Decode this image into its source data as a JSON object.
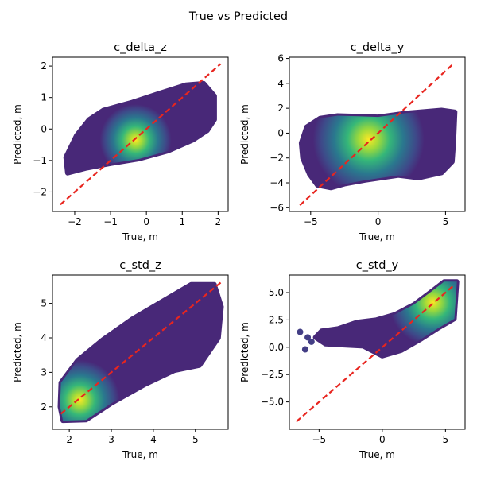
{
  "figure": {
    "suptitle": "True vs Predicted"
  },
  "colors": {
    "diagonal": "#e8251f",
    "scatter_low": "#482878",
    "scatter_mid": "#2a788e",
    "scatter_high": "#fde725"
  },
  "chart_data": [
    {
      "type": "scatter",
      "title": "c_delta_z",
      "xlabel": "True, m",
      "ylabel": "Predicted, m",
      "xlim": [
        -2.62,
        2.28
      ],
      "ylim": [
        -2.62,
        2.28
      ],
      "xticks": [
        -2,
        -1,
        0,
        1,
        2
      ],
      "yticks": [
        -2,
        -1,
        0,
        1,
        2
      ],
      "xtick_labels": [
        "−2",
        "−1",
        "0",
        "1",
        "2"
      ],
      "ytick_labels": [
        "−2",
        "−1",
        "0",
        "1",
        "2"
      ],
      "diagonal": [
        [
          -2.4,
          -2.4
        ],
        [
          2.07,
          2.07
        ]
      ],
      "density_center": [
        -0.3,
        -0.35
      ],
      "cloud_outline": [
        [
          -2.2,
          -1.4
        ],
        [
          -1.7,
          -1.25
        ],
        [
          -1.0,
          -1.1
        ],
        [
          -0.2,
          -0.95
        ],
        [
          0.6,
          -0.7
        ],
        [
          1.3,
          -0.35
        ],
        [
          1.7,
          -0.05
        ],
        [
          1.9,
          0.3
        ],
        [
          1.9,
          1.05
        ],
        [
          1.6,
          1.45
        ],
        [
          1.1,
          1.4
        ],
        [
          0.4,
          1.15
        ],
        [
          -0.4,
          0.85
        ],
        [
          -1.2,
          0.6
        ],
        [
          -1.6,
          0.3
        ],
        [
          -1.95,
          -0.2
        ],
        [
          -2.25,
          -0.9
        ]
      ]
    },
    {
      "type": "scatter",
      "title": "c_delta_y",
      "xlabel": "True, m",
      "ylabel": "Predicted, m",
      "xlim": [
        -6.58,
        6.45
      ],
      "ylim": [
        -6.3,
        6.1
      ],
      "xticks": [
        -5,
        0,
        5
      ],
      "yticks": [
        -6,
        -4,
        -2,
        0,
        2,
        4,
        6
      ],
      "xtick_labels": [
        "−5",
        "0",
        "5"
      ],
      "ytick_labels": [
        "−6",
        "−4",
        "−2",
        "0",
        "2",
        "4",
        "6"
      ],
      "diagonal": [
        [
          -5.8,
          -5.8
        ],
        [
          5.6,
          5.6
        ]
      ],
      "density_center": [
        -0.7,
        -0.5
      ],
      "cloud_outline": [
        [
          -5.6,
          -2.0
        ],
        [
          -5.1,
          -3.3
        ],
        [
          -4.5,
          -4.2
        ],
        [
          -3.5,
          -4.4
        ],
        [
          -2.5,
          -4.1
        ],
        [
          -1.0,
          -3.8
        ],
        [
          1.5,
          -3.4
        ],
        [
          3.0,
          -3.6
        ],
        [
          4.7,
          -3.2
        ],
        [
          5.5,
          -2.3
        ],
        [
          5.6,
          -0.8
        ],
        [
          5.7,
          1.7
        ],
        [
          4.7,
          1.85
        ],
        [
          2.0,
          1.6
        ],
        [
          0.0,
          1.3
        ],
        [
          -1.5,
          1.35
        ],
        [
          -3.0,
          1.4
        ],
        [
          -4.3,
          1.2
        ],
        [
          -5.3,
          0.5
        ],
        [
          -5.7,
          -0.8
        ]
      ]
    },
    {
      "type": "scatter",
      "title": "c_std_z",
      "xlabel": "True, m",
      "ylabel": "Predicted, m",
      "xlim": [
        1.6,
        5.78
      ],
      "ylim": [
        1.35,
        5.82
      ],
      "xticks": [
        2,
        3,
        4,
        5
      ],
      "yticks": [
        2,
        3,
        4,
        5
      ],
      "xtick_labels": [
        "2",
        "3",
        "4",
        "5"
      ],
      "ytick_labels": [
        "2",
        "3",
        "4",
        "5"
      ],
      "diagonal": [
        [
          1.8,
          1.8
        ],
        [
          5.65,
          5.65
        ]
      ],
      "density_center": [
        2.25,
        2.2
      ],
      "cloud_outline": [
        [
          1.85,
          1.6
        ],
        [
          2.4,
          1.62
        ],
        [
          3.0,
          2.1
        ],
        [
          3.8,
          2.65
        ],
        [
          4.5,
          3.05
        ],
        [
          5.1,
          3.2
        ],
        [
          5.55,
          4.0
        ],
        [
          5.62,
          4.9
        ],
        [
          5.45,
          5.55
        ],
        [
          4.9,
          5.55
        ],
        [
          4.2,
          5.05
        ],
        [
          3.5,
          4.55
        ],
        [
          2.8,
          3.95
        ],
        [
          2.2,
          3.35
        ],
        [
          1.8,
          2.7
        ],
        [
          1.78,
          2.0
        ]
      ]
    },
    {
      "type": "scatter",
      "title": "c_std_y",
      "xlabel": "True, m",
      "ylabel": "Predicted, m",
      "xlim": [
        -7.35,
        6.55
      ],
      "ylim": [
        -7.5,
        6.6
      ],
      "xticks": [
        -5,
        0,
        5
      ],
      "yticks": [
        -5.0,
        -2.5,
        0.0,
        2.5,
        5.0
      ],
      "xtick_labels": [
        "−5",
        "0",
        "5"
      ],
      "ytick_labels": [
        "−5.0",
        "−2.5",
        "0.0",
        "2.5",
        "5.0"
      ],
      "diagonal": [
        [
          -6.8,
          -6.8
        ],
        [
          5.6,
          5.6
        ]
      ],
      "density_center": [
        4.0,
        4.1
      ],
      "cloud_outline": [
        [
          -5.3,
          0.9
        ],
        [
          -4.5,
          0.3
        ],
        [
          -3.0,
          0.2
        ],
        [
          -1.5,
          0.1
        ],
        [
          0.0,
          -0.8
        ],
        [
          1.5,
          -0.3
        ],
        [
          3.0,
          0.7
        ],
        [
          4.5,
          1.8
        ],
        [
          5.7,
          2.6
        ],
        [
          5.9,
          6.0
        ],
        [
          4.9,
          6.0
        ],
        [
          4.0,
          5.2
        ],
        [
          2.5,
          3.9
        ],
        [
          1.0,
          3.0
        ],
        [
          -0.5,
          2.5
        ],
        [
          -2.0,
          2.3
        ],
        [
          -3.5,
          1.7
        ],
        [
          -4.8,
          1.5
        ]
      ],
      "outliers": [
        [
          -6.5,
          1.4
        ],
        [
          -6.1,
          -0.2
        ],
        [
          -5.6,
          0.5
        ],
        [
          -5.9,
          0.9
        ]
      ]
    }
  ]
}
